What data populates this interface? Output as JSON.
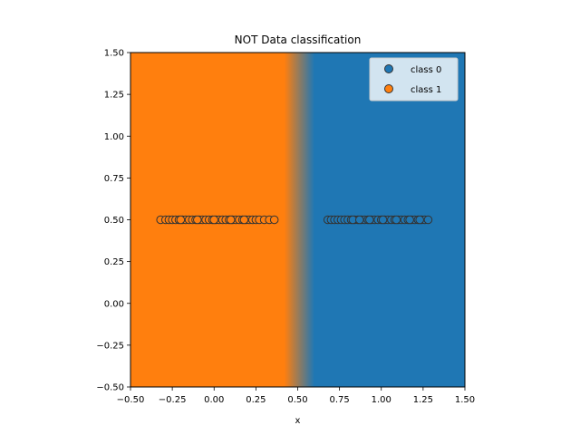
{
  "chart_data": {
    "type": "scatter",
    "title": "NOT Data classification",
    "xlabel": "x",
    "ylabel": "",
    "xlim": [
      -0.5,
      1.5
    ],
    "ylim": [
      -0.5,
      1.5
    ],
    "xticks": [
      "−0.50",
      "−0.25",
      "0.00",
      "0.25",
      "0.50",
      "0.75",
      "1.00",
      "1.25",
      "1.50"
    ],
    "yticks": [
      "−0.50",
      "−0.25",
      "0.00",
      "0.25",
      "0.50",
      "0.75",
      "1.00",
      "1.25",
      "1.50"
    ],
    "xtick_values": [
      -0.5,
      -0.25,
      0,
      0.25,
      0.5,
      0.75,
      1.0,
      1.25,
      1.5
    ],
    "ytick_values": [
      -0.5,
      -0.25,
      0,
      0.25,
      0.5,
      0.75,
      1.0,
      1.25,
      1.5
    ],
    "grid": false,
    "legend_position": "top-right",
    "decision_boundary": {
      "class1_color": "#ff7f0e",
      "class0_color": "#1f77b4",
      "transition_start": 0.42,
      "transition_end": 0.6
    },
    "series": [
      {
        "name": "class 0",
        "color": "#1f77b4",
        "points": [
          [
            0.68,
            0.5
          ],
          [
            0.7,
            0.5
          ],
          [
            0.72,
            0.5
          ],
          [
            0.74,
            0.5
          ],
          [
            0.76,
            0.5
          ],
          [
            0.78,
            0.5
          ],
          [
            0.8,
            0.5
          ],
          [
            0.82,
            0.5
          ],
          [
            0.84,
            0.5
          ],
          [
            0.86,
            0.5
          ],
          [
            0.88,
            0.5
          ],
          [
            0.9,
            0.5
          ],
          [
            0.92,
            0.5
          ],
          [
            0.94,
            0.5
          ],
          [
            0.96,
            0.5
          ],
          [
            0.98,
            0.5
          ],
          [
            1.0,
            0.5
          ],
          [
            1.02,
            0.5
          ],
          [
            1.04,
            0.5
          ],
          [
            1.06,
            0.5
          ],
          [
            1.08,
            0.5
          ],
          [
            1.1,
            0.5
          ],
          [
            1.12,
            0.5
          ],
          [
            1.14,
            0.5
          ],
          [
            1.16,
            0.5
          ],
          [
            1.18,
            0.5
          ],
          [
            1.2,
            0.5
          ],
          [
            1.22,
            0.5
          ],
          [
            1.24,
            0.5
          ],
          [
            1.26,
            0.5
          ],
          [
            1.28,
            0.5
          ],
          [
            0.83,
            0.5
          ],
          [
            0.87,
            0.5
          ],
          [
            0.93,
            0.5
          ],
          [
            1.01,
            0.5
          ],
          [
            1.09,
            0.5
          ],
          [
            1.17,
            0.5
          ],
          [
            1.23,
            0.5
          ]
        ]
      },
      {
        "name": "class 1",
        "color": "#ff7f0e",
        "points": [
          [
            -0.32,
            0.5
          ],
          [
            -0.29,
            0.5
          ],
          [
            -0.27,
            0.5
          ],
          [
            -0.25,
            0.5
          ],
          [
            -0.23,
            0.5
          ],
          [
            -0.21,
            0.5
          ],
          [
            -0.19,
            0.5
          ],
          [
            -0.17,
            0.5
          ],
          [
            -0.15,
            0.5
          ],
          [
            -0.13,
            0.5
          ],
          [
            -0.11,
            0.5
          ],
          [
            -0.09,
            0.5
          ],
          [
            -0.07,
            0.5
          ],
          [
            -0.05,
            0.5
          ],
          [
            -0.03,
            0.5
          ],
          [
            -0.01,
            0.5
          ],
          [
            0.01,
            0.5
          ],
          [
            0.03,
            0.5
          ],
          [
            0.05,
            0.5
          ],
          [
            0.07,
            0.5
          ],
          [
            0.09,
            0.5
          ],
          [
            0.11,
            0.5
          ],
          [
            0.13,
            0.5
          ],
          [
            0.15,
            0.5
          ],
          [
            0.17,
            0.5
          ],
          [
            0.19,
            0.5
          ],
          [
            0.21,
            0.5
          ],
          [
            0.23,
            0.5
          ],
          [
            0.25,
            0.5
          ],
          [
            0.27,
            0.5
          ],
          [
            0.3,
            0.5
          ],
          [
            0.33,
            0.5
          ],
          [
            0.36,
            0.5
          ],
          [
            -0.2,
            0.5
          ],
          [
            -0.1,
            0.5
          ],
          [
            0.0,
            0.5
          ],
          [
            0.1,
            0.5
          ],
          [
            0.18,
            0.5
          ]
        ]
      }
    ]
  }
}
